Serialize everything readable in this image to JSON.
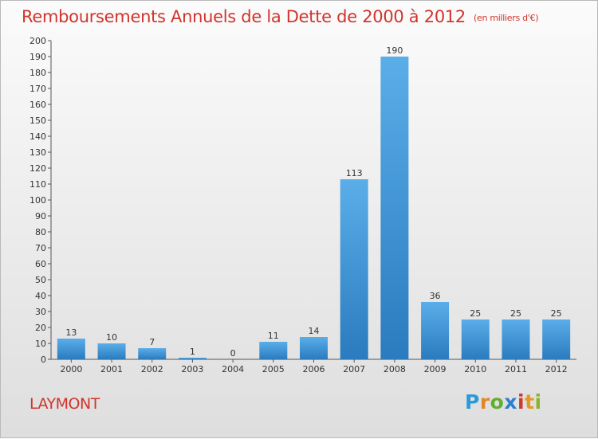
{
  "header": {
    "title": "Remboursements Annuels de la Dette de 2000 à 2012",
    "unit": "(en milliers d'€)"
  },
  "footer": {
    "place": "LAYMONT",
    "logo": {
      "p": "P",
      "r": "r",
      "o": "o",
      "x": "x",
      "i": "i",
      "t": "t",
      "i2": "i"
    }
  },
  "colors": {
    "title": "#d1342c",
    "bar_light": "#5aaee8",
    "bar_dark": "#2a7bbf"
  },
  "chart_data": {
    "type": "bar",
    "title": "Remboursements Annuels de la Dette de 2000 à 2012",
    "xlabel": "",
    "ylabel": "",
    "categories": [
      "2000",
      "2001",
      "2002",
      "2003",
      "2004",
      "2005",
      "2006",
      "2007",
      "2008",
      "2009",
      "2010",
      "2011",
      "2012"
    ],
    "values": [
      13,
      10,
      7,
      1,
      0,
      11,
      14,
      113,
      190,
      36,
      25,
      25,
      25
    ],
    "ylim": [
      0,
      200
    ],
    "ytick_step": 10,
    "grid": false
  }
}
